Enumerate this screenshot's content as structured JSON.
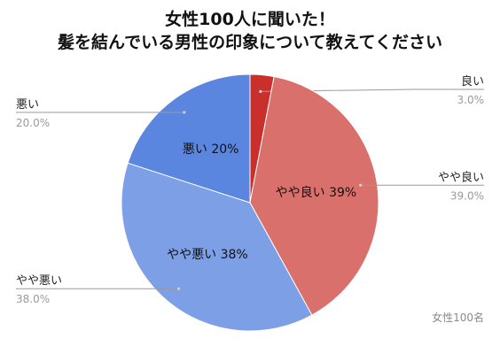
{
  "title_lines": [
    "女性100人に聞いた！",
    "髪を結んでいる男性の印象について教えてください"
  ],
  "note": "女性100名",
  "chart_data": {
    "type": "pie",
    "title": "女性100人に聞いた！ 髪を結んでいる男性の印象について教えてください",
    "start_angle_deg": 0,
    "legend": "none",
    "slices": [
      {
        "label": "良い",
        "value": 3.0,
        "pct_label": "3.0%",
        "inner_label": "",
        "color": "#c9302c",
        "side": "right"
      },
      {
        "label": "やや良い",
        "value": 39.0,
        "pct_label": "39.0%",
        "inner_label": "やや良い 39%",
        "color": "#d9706c",
        "side": "right"
      },
      {
        "label": "やや悪い",
        "value": 38.0,
        "pct_label": "38.0%",
        "inner_label": "やや悪い 38%",
        "color": "#7d9fe6",
        "side": "left"
      },
      {
        "label": "悪い",
        "value": 20.0,
        "pct_label": "20.0%",
        "inner_label": "悪い 20%",
        "color": "#5b86e0",
        "side": "left"
      }
    ]
  }
}
